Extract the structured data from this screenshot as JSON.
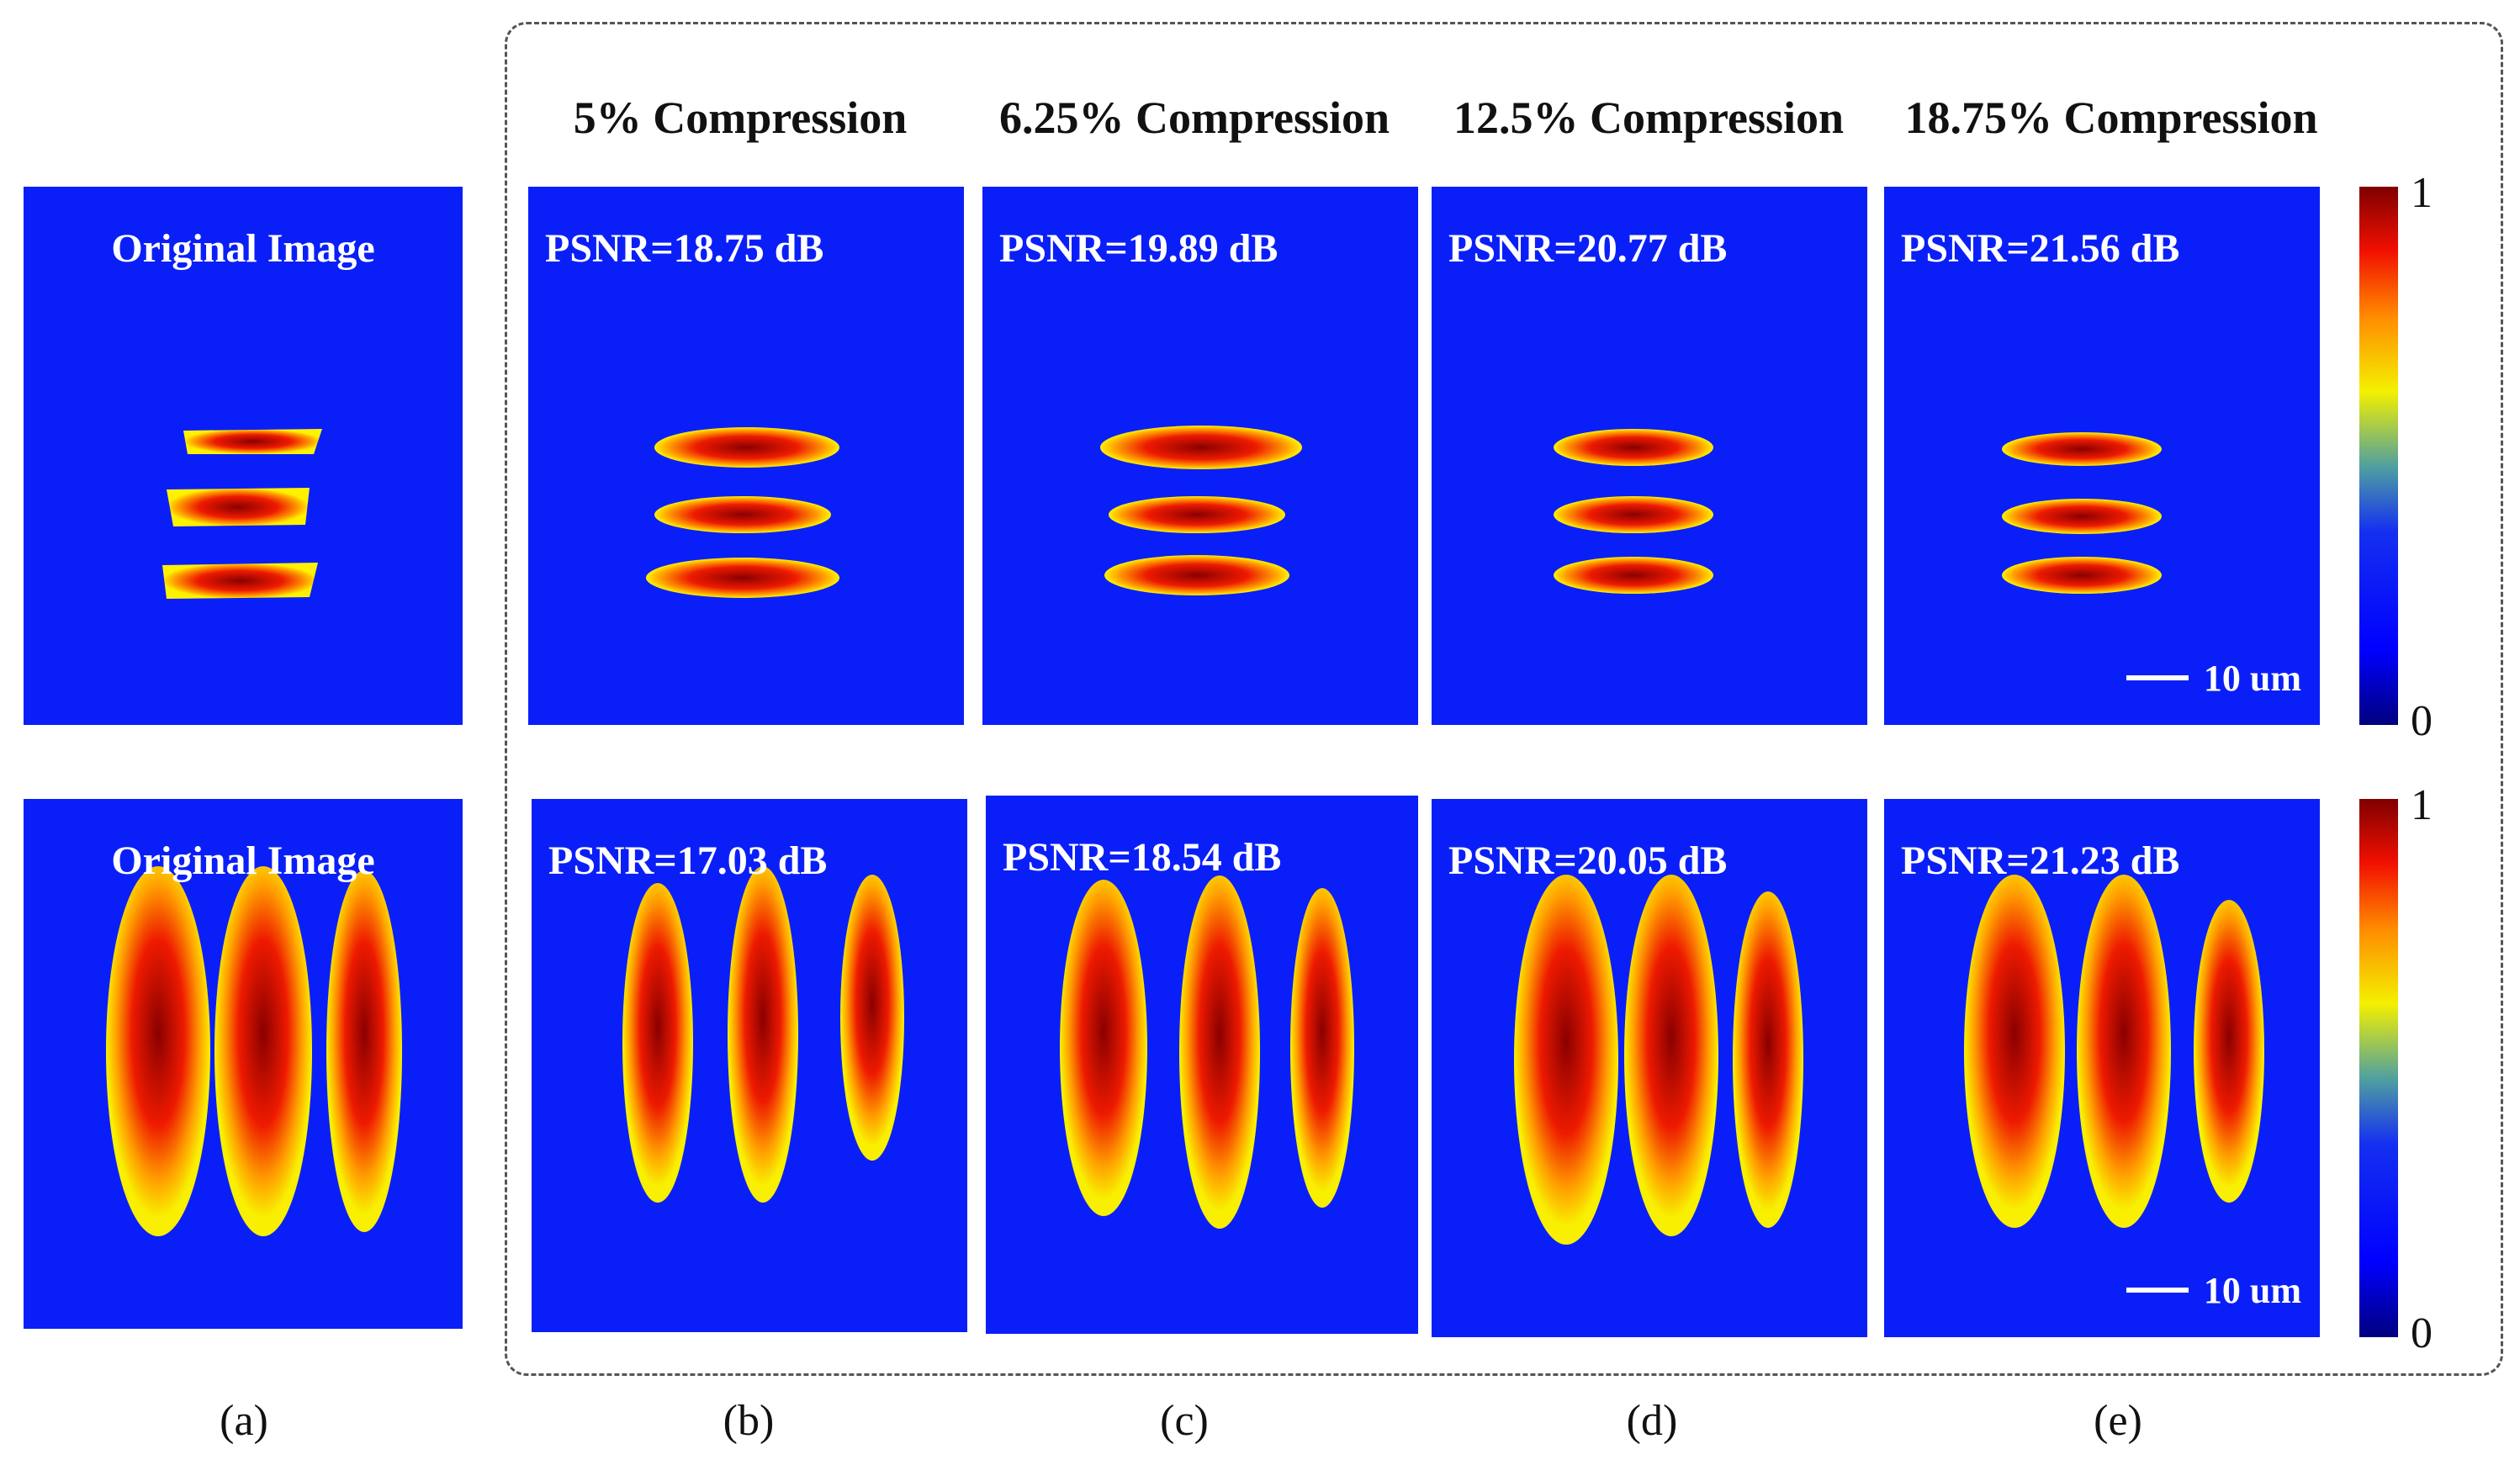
{
  "figure": {
    "column_titles": [
      "5% Compression",
      "6.25% Compression",
      "12.5% Compression",
      "18.75% Compression"
    ],
    "rows": [
      {
        "original_label": "Original Image",
        "psnr": [
          "PSNR=18.75 dB",
          "PSNR=19.89 dB",
          "PSNR=20.77 dB",
          "PSNR=21.56 dB"
        ],
        "scale_bar": "10 um",
        "colorbar": {
          "max": "1",
          "min": "0"
        }
      },
      {
        "original_label": "Original Image",
        "psnr": [
          "PSNR=17.03 dB",
          "PSNR=18.54 dB",
          "PSNR=20.05 dB",
          "PSNR=21.23 dB"
        ],
        "scale_bar": "10 um",
        "colorbar": {
          "max": "1",
          "min": "0"
        }
      }
    ],
    "subfigure_labels": [
      "(a)",
      "(b)",
      "(c)",
      "(d)",
      "(e)"
    ],
    "colors": {
      "background": "#0a1ff8",
      "low": "#00007f",
      "high": "#7f0000"
    }
  }
}
